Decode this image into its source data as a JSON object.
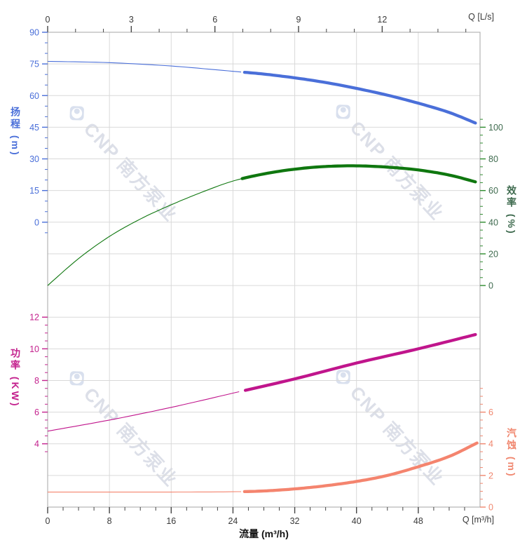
{
  "watermark": {
    "text": "CNP 南方泵业"
  },
  "chart_data": {
    "type": "line",
    "title": "",
    "grid": "on",
    "legend": "none",
    "axes": {
      "top_x": {
        "label": "Q [L/s]",
        "tick_values": [
          0,
          3,
          6,
          9,
          12
        ],
        "minor_step": 1,
        "range": [
          0,
          15.5
        ],
        "color": "#3a3a3a"
      },
      "bottom_x": {
        "label": "Q [m³/h]",
        "title": "流量 (m³/h)",
        "tick_values": [
          0,
          8,
          16,
          24,
          32,
          40,
          48
        ],
        "minor_step": 2,
        "range": [
          0,
          56
        ],
        "color": "#3a3a3a"
      },
      "head_y": {
        "title": "扬程 (m)",
        "side": "left",
        "tick_values": [
          90,
          75,
          60,
          45,
          30,
          15,
          0
        ],
        "minor_step": 5,
        "range": [
          0,
          90
        ],
        "color": "#4a6fd9",
        "label_color": "#4a6fd9"
      },
      "eff_y": {
        "title": "效率 (%)",
        "side": "right",
        "tick_values": [
          100,
          80,
          60,
          40,
          20,
          0
        ],
        "minor_step": 5,
        "range": [
          0,
          100
        ],
        "color": "#2e8b2e",
        "label_color": "#3f6b4f"
      },
      "power_y": {
        "title": "功率 (KW)",
        "side": "left",
        "tick_values": [
          12,
          10,
          8,
          6,
          4
        ],
        "minor_step": 0.5,
        "range": [
          4,
          12
        ],
        "color": "#c4228e",
        "label_color": "#c4228e"
      },
      "npsh_y": {
        "title": "汽蚀 (m)",
        "side": "right",
        "tick_values": [
          6,
          4,
          2,
          0
        ],
        "minor_step": 0.5,
        "range": [
          0,
          6
        ],
        "color": "#f0876f",
        "label_color": "#f0876f"
      }
    },
    "series": [
      {
        "id": "head",
        "name": "扬程",
        "axis": "head_y",
        "color": "#4a6fd9",
        "rated_from_q": 25.2,
        "points": [
          [
            0,
            76.2
          ],
          [
            8,
            75.6
          ],
          [
            16,
            74.0
          ],
          [
            24,
            71.5
          ],
          [
            28,
            70.2
          ],
          [
            32,
            68.4
          ],
          [
            36,
            66.2
          ],
          [
            40,
            63.4
          ],
          [
            44,
            60.2
          ],
          [
            48,
            56.4
          ],
          [
            52,
            52.0
          ],
          [
            55.4,
            47.0
          ]
        ]
      },
      {
        "id": "efficiency",
        "name": "效率",
        "axis": "eff_y",
        "color": "#0f770f",
        "rated_from_q": 25.2,
        "points": [
          [
            0,
            0
          ],
          [
            4,
            17
          ],
          [
            8,
            31
          ],
          [
            12,
            42
          ],
          [
            16,
            51
          ],
          [
            20,
            59
          ],
          [
            24,
            66
          ],
          [
            28,
            70.5
          ],
          [
            32,
            73.5
          ],
          [
            36,
            75.2
          ],
          [
            40,
            75.6
          ],
          [
            44,
            74.8
          ],
          [
            48,
            73.0
          ],
          [
            52,
            69.8
          ],
          [
            55.4,
            65.5
          ]
        ]
      },
      {
        "id": "power",
        "name": "功率",
        "axis": "power_y",
        "color": "#c0158c",
        "rated_from_q": 25.2,
        "points": [
          [
            0,
            4.8
          ],
          [
            8,
            5.5
          ],
          [
            16,
            6.3
          ],
          [
            24,
            7.2
          ],
          [
            32,
            8.1
          ],
          [
            40,
            9.1
          ],
          [
            48,
            10.0
          ],
          [
            55.4,
            10.9
          ]
        ]
      },
      {
        "id": "npsh",
        "name": "汽蚀",
        "axis": "npsh_y",
        "color": "#f4846e",
        "rated_from_q": 25.2,
        "points": [
          [
            0,
            0.95
          ],
          [
            8,
            0.95
          ],
          [
            16,
            0.95
          ],
          [
            24,
            0.97
          ],
          [
            28,
            1.02
          ],
          [
            32,
            1.15
          ],
          [
            36,
            1.35
          ],
          [
            40,
            1.62
          ],
          [
            44,
            2.0
          ],
          [
            48,
            2.55
          ],
          [
            52,
            3.2
          ],
          [
            55.6,
            4.05
          ]
        ]
      }
    ]
  }
}
